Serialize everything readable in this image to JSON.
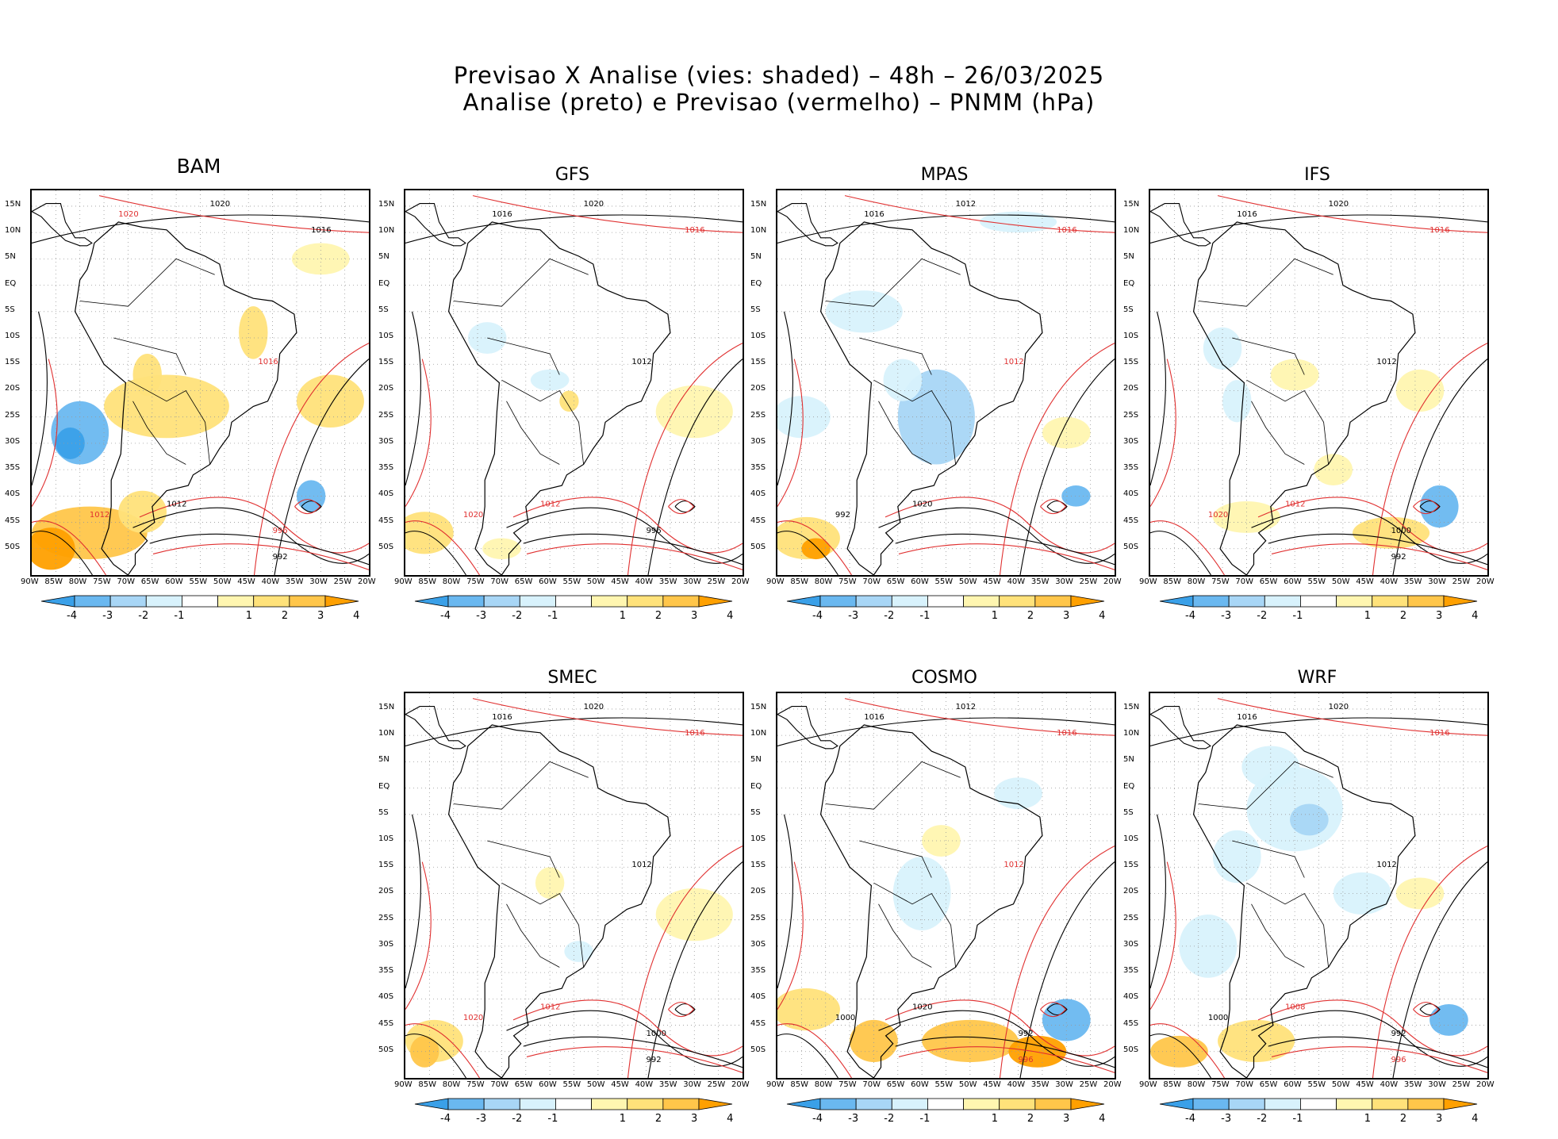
{
  "title": {
    "line1": "Previsao X Analise (vies: shaded) – 48h – 26/03/2025",
    "line2": "Analise (preto) e Previsao (vermelho) – PNMM (hPa)"
  },
  "lat_labels": [
    "15N",
    "10N",
    "5N",
    "EQ",
    "5S",
    "10S",
    "15S",
    "20S",
    "25S",
    "30S",
    "35S",
    "40S",
    "45S",
    "50S"
  ],
  "lon_labels": [
    "90W",
    "85W",
    "80W",
    "75W",
    "70W",
    "65W",
    "60W",
    "55W",
    "50W",
    "45W",
    "40W",
    "35W",
    "30W",
    "25W",
    "20W"
  ],
  "colorbar": {
    "labels": [
      "-4",
      "-3",
      "-2",
      "-1",
      "1",
      "2",
      "3",
      "4"
    ],
    "colors": [
      "#3aa0e8",
      "#6ab8f0",
      "#a8d6f6",
      "#d8f2fc",
      "#ffffff",
      "#fff6b0",
      "#ffe27a",
      "#ffc64a",
      "#ffa000"
    ]
  },
  "colors": {
    "analysis_contour": "#000000",
    "forecast_contour": "#e03030",
    "coast": "#000000"
  },
  "panels": [
    {
      "id": "bam",
      "name": "BAM",
      "isobars": [
        {
          "label": "1020",
          "color": "black"
        },
        {
          "label": "1020",
          "color": "red"
        },
        {
          "label": "1016",
          "color": "black"
        },
        {
          "label": "1016",
          "color": "red"
        },
        {
          "label": "1012",
          "color": "black"
        },
        {
          "label": "1012",
          "color": "red"
        },
        {
          "label": "996",
          "color": "red"
        },
        {
          "label": "992",
          "color": "black"
        }
      ]
    },
    {
      "id": "gfs",
      "name": "GFS",
      "isobars": [
        {
          "label": "1020",
          "color": "black"
        },
        {
          "label": "1016",
          "color": "black"
        },
        {
          "label": "1016",
          "color": "red"
        },
        {
          "label": "1012",
          "color": "black"
        },
        {
          "label": "1012",
          "color": "red"
        },
        {
          "label": "1020",
          "color": "red"
        },
        {
          "label": "996",
          "color": "black"
        }
      ]
    },
    {
      "id": "mpas",
      "name": "MPAS",
      "isobars": [
        {
          "label": "1012",
          "color": "black"
        },
        {
          "label": "1016",
          "color": "black"
        },
        {
          "label": "1016",
          "color": "red"
        },
        {
          "label": "1012",
          "color": "red"
        },
        {
          "label": "1020",
          "color": "black"
        },
        {
          "label": "992",
          "color": "black"
        }
      ]
    },
    {
      "id": "ifs",
      "name": "IFS",
      "isobars": [
        {
          "label": "1020",
          "color": "black"
        },
        {
          "label": "1016",
          "color": "black"
        },
        {
          "label": "1016",
          "color": "red"
        },
        {
          "label": "1012",
          "color": "black"
        },
        {
          "label": "1012",
          "color": "red"
        },
        {
          "label": "1020",
          "color": "red"
        },
        {
          "label": "1000",
          "color": "black"
        },
        {
          "label": "992",
          "color": "black"
        }
      ]
    },
    {
      "id": "smec",
      "name": "SMEC",
      "isobars": [
        {
          "label": "1020",
          "color": "black"
        },
        {
          "label": "1016",
          "color": "black"
        },
        {
          "label": "1016",
          "color": "red"
        },
        {
          "label": "1012",
          "color": "black"
        },
        {
          "label": "1012",
          "color": "red"
        },
        {
          "label": "1020",
          "color": "red"
        },
        {
          "label": "1000",
          "color": "black"
        },
        {
          "label": "992",
          "color": "black"
        }
      ]
    },
    {
      "id": "cosmo",
      "name": "COSMO",
      "isobars": [
        {
          "label": "1012",
          "color": "black"
        },
        {
          "label": "1016",
          "color": "black"
        },
        {
          "label": "1016",
          "color": "red"
        },
        {
          "label": "1012",
          "color": "red"
        },
        {
          "label": "1020",
          "color": "black"
        },
        {
          "label": "1000",
          "color": "black"
        },
        {
          "label": "992",
          "color": "black"
        },
        {
          "label": "996",
          "color": "red"
        }
      ]
    },
    {
      "id": "wrf",
      "name": "WRF",
      "isobars": [
        {
          "label": "1020",
          "color": "black"
        },
        {
          "label": "1016",
          "color": "black"
        },
        {
          "label": "1016",
          "color": "red"
        },
        {
          "label": "1012",
          "color": "black"
        },
        {
          "label": "1008",
          "color": "red"
        },
        {
          "label": "1000",
          "color": "black"
        },
        {
          "label": "992",
          "color": "black"
        },
        {
          "label": "996",
          "color": "red"
        }
      ]
    }
  ]
}
